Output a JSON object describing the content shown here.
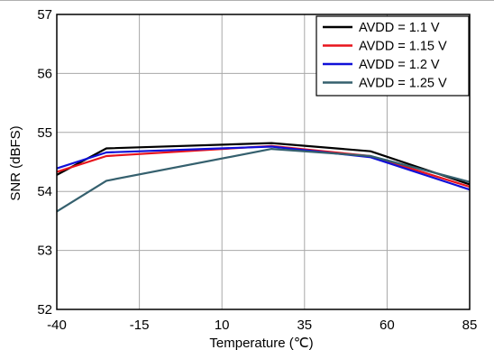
{
  "chart_data": {
    "type": "line",
    "title": "",
    "xlabel": "Temperature (℃)",
    "ylabel": "SNR (dBFS)",
    "xlim": [
      -40,
      85
    ],
    "ylim": [
      52,
      57
    ],
    "xticks": [
      "-40",
      "-15",
      "10",
      "35",
      "60",
      "85"
    ],
    "yticks": [
      "52",
      "53",
      "54",
      "55",
      "56",
      "57"
    ],
    "grid": true,
    "legend_position": "top-right",
    "series": [
      {
        "name": "AVDD = 1.1 V",
        "color": "#000000",
        "x": [
          -40,
          -25,
          25,
          55,
          85
        ],
        "y": [
          54.28,
          54.73,
          54.82,
          54.68,
          54.12
        ]
      },
      {
        "name": "AVDD = 1.15 V",
        "color": "#e8141c",
        "x": [
          -40,
          -25,
          25,
          55,
          85
        ],
        "y": [
          54.33,
          54.6,
          54.77,
          54.6,
          54.08
        ]
      },
      {
        "name": "AVDD = 1.2 V",
        "color": "#1010d8",
        "x": [
          -40,
          -25,
          25,
          55,
          85
        ],
        "y": [
          54.39,
          54.66,
          54.76,
          54.58,
          54.03
        ]
      },
      {
        "name": "AVDD = 1.25 V",
        "color": "#35606e",
        "x": [
          -40,
          -25,
          25,
          55,
          85
        ],
        "y": [
          53.66,
          54.18,
          54.72,
          54.6,
          54.16
        ]
      }
    ]
  }
}
